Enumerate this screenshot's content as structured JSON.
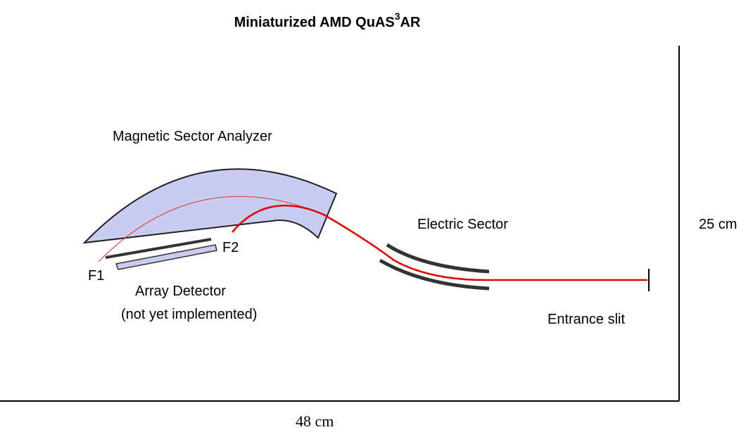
{
  "title": {
    "main": "Miniaturized AMD QuAS",
    "sup": "3",
    "tail": "AR"
  },
  "labels": {
    "magnetic": "Magnetic Sector Analyzer",
    "electric": "Electric Sector",
    "height": "25 cm",
    "f1": "F1",
    "f2": "F2",
    "detector": "Array Detector",
    "detector_note": "(not yet implemented)",
    "slit": "Entrance slit",
    "width": "48 cm"
  }
}
